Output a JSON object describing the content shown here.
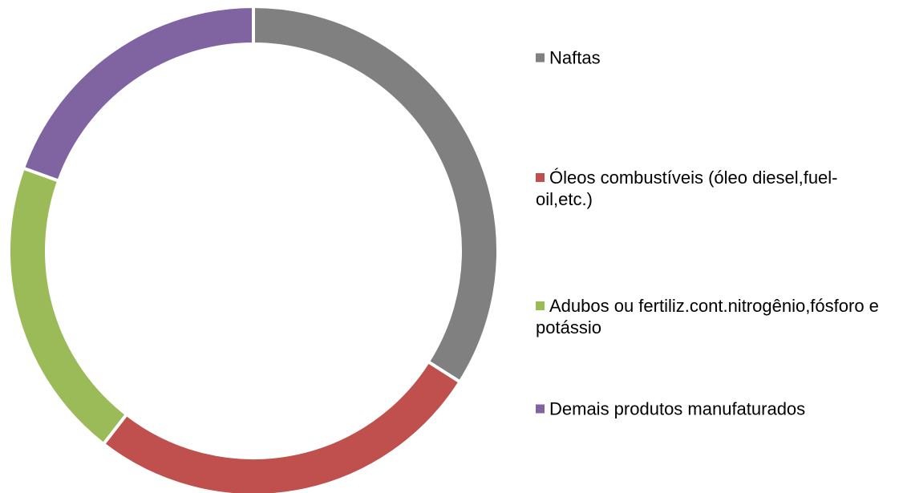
{
  "chart_data": {
    "type": "donut",
    "categories": [
      "Naftas",
      "Óleos combustíveis (óleo diesel,fuel-oil,etc.)",
      "Adubos ou fertiliz.cont.nitrogênio,fósforo e potássio",
      "Demais produtos manufaturados"
    ],
    "values": [
      34,
      26.5,
      20,
      19.5
    ],
    "colors": [
      "#808080",
      "#c0504d",
      "#9bbb59",
      "#8064a2"
    ],
    "legend": "right"
  }
}
